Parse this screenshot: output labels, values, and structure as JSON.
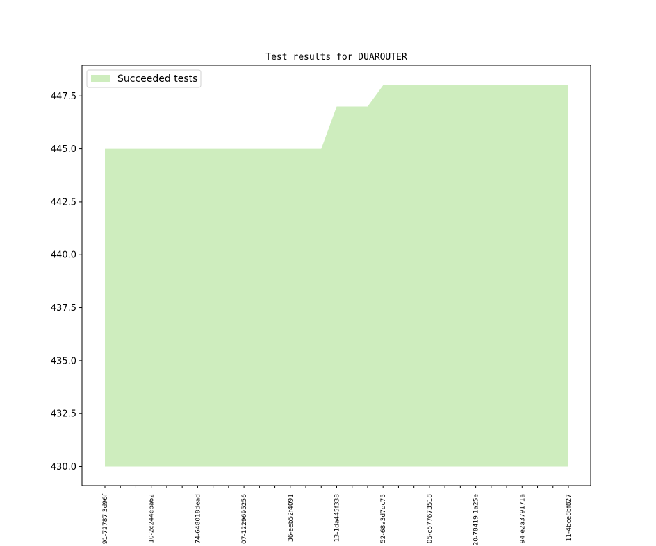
{
  "chart_data": {
    "type": "area",
    "title": "Test results for DUAROUTER",
    "xlabel": "",
    "ylabel": "",
    "ylim": [
      429.1,
      448.95
    ],
    "baseline": 430,
    "yticks": [
      "430.0",
      "432.5",
      "435.0",
      "437.5",
      "440.0",
      "442.5",
      "445.0",
      "447.5"
    ],
    "ytick_values": [
      430,
      432.5,
      435,
      437.5,
      440,
      442.5,
      445,
      447.5
    ],
    "x_labeled_indices": [
      0,
      3,
      6,
      9,
      12,
      15,
      18,
      21,
      24,
      27,
      30
    ],
    "xtick_labels": [
      "91-72787 3d96f",
      "10-2c244eba62",
      "74-648018dead",
      "07-1229695256",
      "36-eeb52f4091",
      "13-1da445f338",
      "52-68a3d7dc75",
      "05-c577673518",
      "20-78419 1a25e",
      "94-e2a379171a",
      "11-4bce8bf827"
    ],
    "series": [
      {
        "name": "Succeeded tests",
        "color": "#ceedbe",
        "values": [
          445,
          445,
          445,
          445,
          445,
          445,
          445,
          445,
          445,
          445,
          445,
          445,
          445,
          445,
          445,
          447,
          447,
          447,
          448,
          448,
          448,
          448,
          448,
          448,
          448,
          448,
          448,
          448,
          448,
          448,
          448
        ]
      }
    ],
    "legend_position": "top-left",
    "grid": false
  }
}
